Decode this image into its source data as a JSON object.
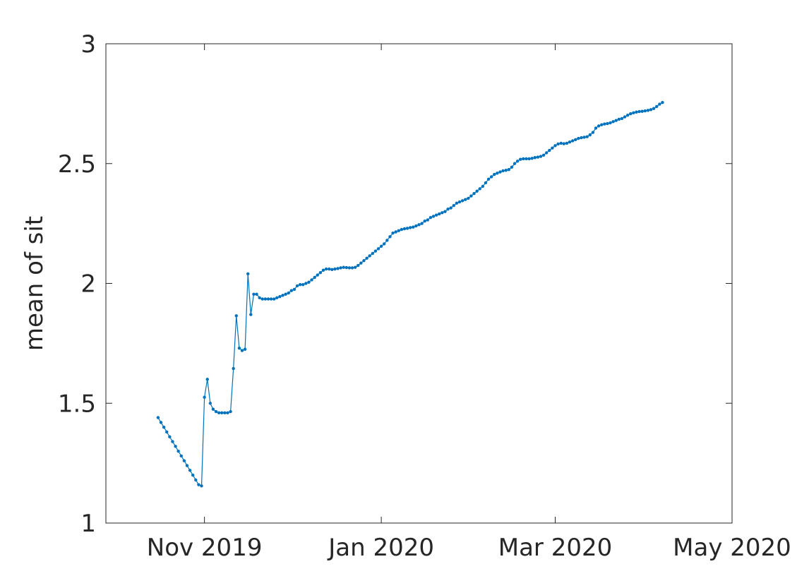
{
  "chart_data": {
    "type": "line",
    "title": "",
    "xlabel": "",
    "ylabel": "mean of sit",
    "xlim": [
      "2019-09-28",
      "2020-05-01"
    ],
    "ylim": [
      1,
      3
    ],
    "x_ticks": [
      {
        "date": "2019-11-01",
        "label": "Nov 2019"
      },
      {
        "date": "2020-01-01",
        "label": "Jan 2020"
      },
      {
        "date": "2020-03-01",
        "label": "Mar 2020"
      },
      {
        "date": "2020-05-01",
        "label": "May 2020"
      }
    ],
    "y_ticks": [
      {
        "value": 1,
        "label": "1"
      },
      {
        "value": 1.5,
        "label": "1.5"
      },
      {
        "value": 2,
        "label": "2"
      },
      {
        "value": 2.5,
        "label": "2.5"
      },
      {
        "value": 3,
        "label": "3"
      }
    ],
    "grid": false,
    "series": [
      {
        "color": "#0072BD",
        "marker": "point",
        "points": [
          [
            "2019-10-16",
            1.44
          ],
          [
            "2019-10-17",
            1.42
          ],
          [
            "2019-10-18",
            1.4
          ],
          [
            "2019-10-19",
            1.38
          ],
          [
            "2019-10-20",
            1.36
          ],
          [
            "2019-10-21",
            1.34
          ],
          [
            "2019-10-22",
            1.32
          ],
          [
            "2019-10-23",
            1.3
          ],
          [
            "2019-10-24",
            1.28
          ],
          [
            "2019-10-25",
            1.26
          ],
          [
            "2019-10-26",
            1.24
          ],
          [
            "2019-10-27",
            1.22
          ],
          [
            "2019-10-28",
            1.2
          ],
          [
            "2019-10-29",
            1.18
          ],
          [
            "2019-10-30",
            1.16
          ],
          [
            "2019-10-31",
            1.155
          ],
          [
            "2019-11-01",
            1.525
          ],
          [
            "2019-11-02",
            1.6
          ],
          [
            "2019-11-03",
            1.5
          ],
          [
            "2019-11-04",
            1.475
          ],
          [
            "2019-11-05",
            1.465
          ],
          [
            "2019-11-06",
            1.46
          ],
          [
            "2019-11-07",
            1.46
          ],
          [
            "2019-11-08",
            1.46
          ],
          [
            "2019-11-09",
            1.46
          ],
          [
            "2019-11-10",
            1.465
          ],
          [
            "2019-11-11",
            1.645
          ],
          [
            "2019-11-12",
            1.865
          ],
          [
            "2019-11-13",
            1.73
          ],
          [
            "2019-11-14",
            1.72
          ],
          [
            "2019-11-15",
            1.725
          ],
          [
            "2019-11-16",
            2.04
          ],
          [
            "2019-11-17",
            1.87
          ],
          [
            "2019-11-18",
            1.955
          ],
          [
            "2019-11-19",
            1.955
          ],
          [
            "2019-11-20",
            1.94
          ],
          [
            "2019-11-21",
            1.935
          ],
          [
            "2019-11-22",
            1.935
          ],
          [
            "2019-11-23",
            1.935
          ],
          [
            "2019-11-24",
            1.935
          ],
          [
            "2019-11-25",
            1.935
          ],
          [
            "2019-11-26",
            1.94
          ],
          [
            "2019-11-27",
            1.945
          ],
          [
            "2019-11-28",
            1.95
          ],
          [
            "2019-11-29",
            1.955
          ],
          [
            "2019-11-30",
            1.96
          ],
          [
            "2019-12-01",
            1.97
          ],
          [
            "2019-12-02",
            1.975
          ],
          [
            "2019-12-03",
            1.99
          ],
          [
            "2019-12-04",
            1.995
          ],
          [
            "2019-12-05",
            1.995
          ],
          [
            "2019-12-06",
            2.0
          ],
          [
            "2019-12-07",
            2.005
          ],
          [
            "2019-12-08",
            2.015
          ],
          [
            "2019-12-09",
            2.025
          ],
          [
            "2019-12-10",
            2.035
          ],
          [
            "2019-12-11",
            2.045
          ],
          [
            "2019-12-12",
            2.055
          ],
          [
            "2019-12-13",
            2.06
          ],
          [
            "2019-12-14",
            2.06
          ],
          [
            "2019-12-15",
            2.058
          ],
          [
            "2019-12-16",
            2.06
          ],
          [
            "2019-12-17",
            2.062
          ],
          [
            "2019-12-18",
            2.065
          ],
          [
            "2019-12-19",
            2.067
          ],
          [
            "2019-12-20",
            2.066
          ],
          [
            "2019-12-21",
            2.065
          ],
          [
            "2019-12-22",
            2.065
          ],
          [
            "2019-12-23",
            2.067
          ],
          [
            "2019-12-24",
            2.075
          ],
          [
            "2019-12-25",
            2.085
          ],
          [
            "2019-12-26",
            2.095
          ],
          [
            "2019-12-27",
            2.105
          ],
          [
            "2019-12-28",
            2.115
          ],
          [
            "2019-12-29",
            2.125
          ],
          [
            "2019-12-30",
            2.135
          ],
          [
            "2019-12-31",
            2.145
          ],
          [
            "2020-01-01",
            2.155
          ],
          [
            "2020-01-02",
            2.165
          ],
          [
            "2020-01-03",
            2.18
          ],
          [
            "2020-01-04",
            2.195
          ],
          [
            "2020-01-05",
            2.21
          ],
          [
            "2020-01-06",
            2.215
          ],
          [
            "2020-01-07",
            2.22
          ],
          [
            "2020-01-08",
            2.225
          ],
          [
            "2020-01-09",
            2.228
          ],
          [
            "2020-01-10",
            2.23
          ],
          [
            "2020-01-11",
            2.233
          ],
          [
            "2020-01-12",
            2.235
          ],
          [
            "2020-01-13",
            2.24
          ],
          [
            "2020-01-14",
            2.245
          ],
          [
            "2020-01-15",
            2.25
          ],
          [
            "2020-01-16",
            2.26
          ],
          [
            "2020-01-17",
            2.265
          ],
          [
            "2020-01-18",
            2.275
          ],
          [
            "2020-01-19",
            2.28
          ],
          [
            "2020-01-20",
            2.285
          ],
          [
            "2020-01-21",
            2.29
          ],
          [
            "2020-01-22",
            2.295
          ],
          [
            "2020-01-23",
            2.3
          ],
          [
            "2020-01-24",
            2.31
          ],
          [
            "2020-01-25",
            2.315
          ],
          [
            "2020-01-26",
            2.325
          ],
          [
            "2020-01-27",
            2.335
          ],
          [
            "2020-01-28",
            2.34
          ],
          [
            "2020-01-29",
            2.345
          ],
          [
            "2020-01-30",
            2.35
          ],
          [
            "2020-01-31",
            2.355
          ],
          [
            "2020-02-01",
            2.365
          ],
          [
            "2020-02-02",
            2.375
          ],
          [
            "2020-02-03",
            2.385
          ],
          [
            "2020-02-04",
            2.395
          ],
          [
            "2020-02-05",
            2.405
          ],
          [
            "2020-02-06",
            2.42
          ],
          [
            "2020-02-07",
            2.435
          ],
          [
            "2020-02-08",
            2.445
          ],
          [
            "2020-02-09",
            2.455
          ],
          [
            "2020-02-10",
            2.46
          ],
          [
            "2020-02-11",
            2.465
          ],
          [
            "2020-02-12",
            2.47
          ],
          [
            "2020-02-13",
            2.472
          ],
          [
            "2020-02-14",
            2.475
          ],
          [
            "2020-02-15",
            2.485
          ],
          [
            "2020-02-16",
            2.5
          ],
          [
            "2020-02-17",
            2.51
          ],
          [
            "2020-02-18",
            2.518
          ],
          [
            "2020-02-19",
            2.52
          ],
          [
            "2020-02-20",
            2.52
          ],
          [
            "2020-02-21",
            2.52
          ],
          [
            "2020-02-22",
            2.522
          ],
          [
            "2020-02-23",
            2.525
          ],
          [
            "2020-02-24",
            2.527
          ],
          [
            "2020-02-25",
            2.53
          ],
          [
            "2020-02-26",
            2.535
          ],
          [
            "2020-02-27",
            2.545
          ],
          [
            "2020-02-28",
            2.555
          ],
          [
            "2020-02-29",
            2.565
          ],
          [
            "2020-03-01",
            2.575
          ],
          [
            "2020-03-02",
            2.582
          ],
          [
            "2020-03-03",
            2.585
          ],
          [
            "2020-03-04",
            2.583
          ],
          [
            "2020-03-05",
            2.585
          ],
          [
            "2020-03-06",
            2.59
          ],
          [
            "2020-03-07",
            2.595
          ],
          [
            "2020-03-08",
            2.6
          ],
          [
            "2020-03-09",
            2.605
          ],
          [
            "2020-03-10",
            2.608
          ],
          [
            "2020-03-11",
            2.61
          ],
          [
            "2020-03-12",
            2.612
          ],
          [
            "2020-03-13",
            2.62
          ],
          [
            "2020-03-14",
            2.63
          ],
          [
            "2020-03-15",
            2.648
          ],
          [
            "2020-03-16",
            2.657
          ],
          [
            "2020-03-17",
            2.662
          ],
          [
            "2020-03-18",
            2.665
          ],
          [
            "2020-03-19",
            2.667
          ],
          [
            "2020-03-20",
            2.67
          ],
          [
            "2020-03-21",
            2.675
          ],
          [
            "2020-03-22",
            2.68
          ],
          [
            "2020-03-23",
            2.685
          ],
          [
            "2020-03-24",
            2.688
          ],
          [
            "2020-03-25",
            2.695
          ],
          [
            "2020-03-26",
            2.702
          ],
          [
            "2020-03-27",
            2.708
          ],
          [
            "2020-03-28",
            2.712
          ],
          [
            "2020-03-29",
            2.715
          ],
          [
            "2020-03-30",
            2.717
          ],
          [
            "2020-03-31",
            2.718
          ],
          [
            "2020-04-01",
            2.72
          ],
          [
            "2020-04-02",
            2.722
          ],
          [
            "2020-04-03",
            2.725
          ],
          [
            "2020-04-04",
            2.73
          ],
          [
            "2020-04-05",
            2.738
          ],
          [
            "2020-04-06",
            2.748
          ],
          [
            "2020-04-07",
            2.755
          ]
        ]
      }
    ]
  }
}
